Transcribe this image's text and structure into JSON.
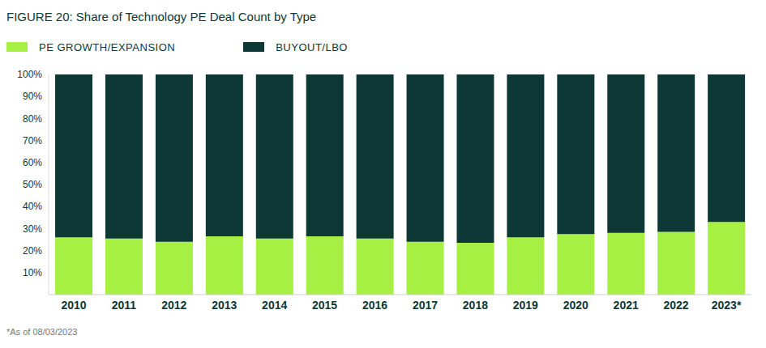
{
  "chart_data": {
    "type": "bar",
    "title": "FIGURE 20: Share of Technology PE Deal Count by Type",
    "footnote": "*As of 08/03/2023",
    "categories": [
      "2010",
      "2011",
      "2012",
      "2013",
      "2014",
      "2015",
      "2016",
      "2017",
      "2018",
      "2019",
      "2020",
      "2021",
      "2022",
      "2023*"
    ],
    "series": [
      {
        "name": "PE GROWTH/EXPANSION",
        "color": "#a6f043",
        "values": [
          26,
          25.5,
          24,
          26.5,
          25.5,
          26.5,
          25.5,
          24,
          23.5,
          26,
          27.5,
          28,
          28.5,
          33
        ]
      },
      {
        "name": "BUYOUT/LBO",
        "color": "#0e3835",
        "values": [
          74,
          74.5,
          76,
          73.5,
          74.5,
          73.5,
          74.5,
          76,
          76.5,
          74,
          72.5,
          72,
          71.5,
          67
        ]
      }
    ],
    "ylim": [
      0,
      100
    ],
    "yticks": [
      {
        "value": 10,
        "label": "10%"
      },
      {
        "value": 20,
        "label": "20%"
      },
      {
        "value": 30,
        "label": "30%"
      },
      {
        "value": 40,
        "label": "40%"
      },
      {
        "value": 50,
        "label": "50%"
      },
      {
        "value": 60,
        "label": "60%"
      },
      {
        "value": 70,
        "label": "70%"
      },
      {
        "value": 80,
        "label": "80%"
      },
      {
        "value": 90,
        "label": "90%"
      },
      {
        "value": 100,
        "label": "100%"
      }
    ],
    "stacked": true,
    "legend": "top-left",
    "grid": false
  }
}
